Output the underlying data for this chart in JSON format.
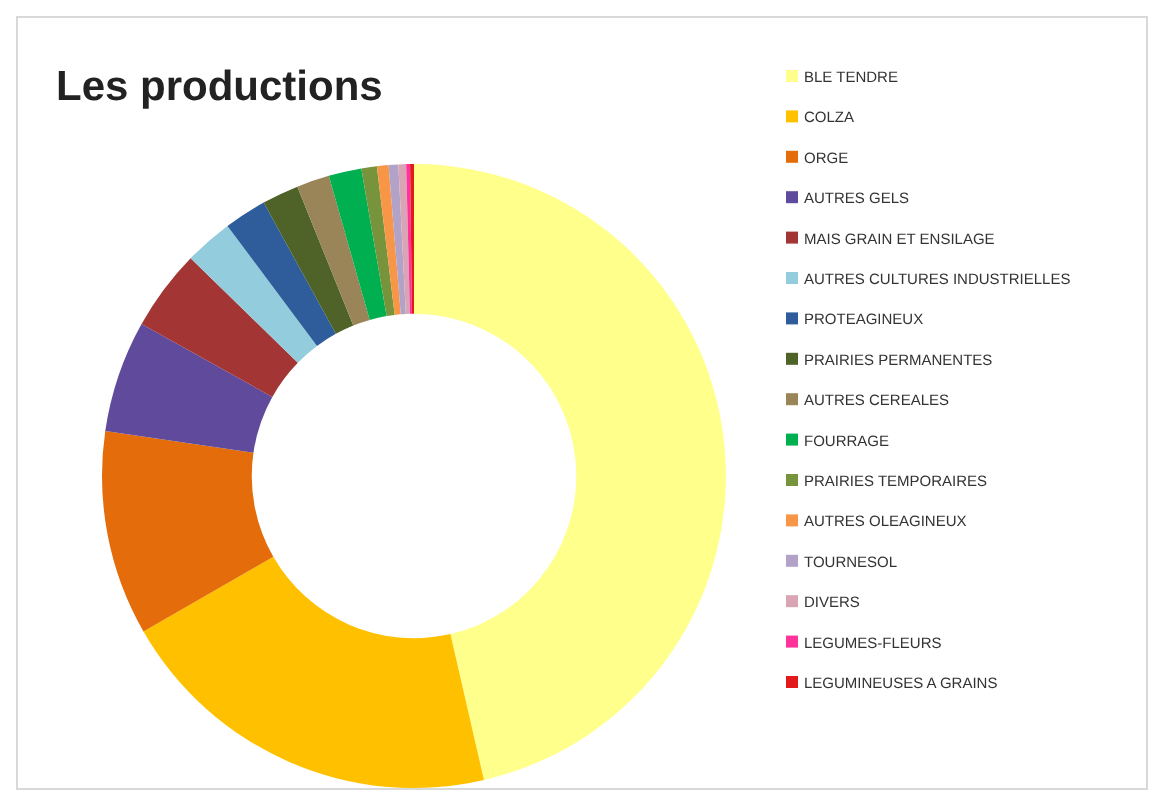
{
  "chart_data": {
    "type": "donut",
    "title": "Les productions",
    "categories": [
      "BLE TENDRE",
      "COLZA",
      "ORGE",
      "AUTRES GELS",
      "MAIS GRAIN ET ENSILAGE",
      "AUTRES CULTURES INDUSTRIELLES",
      "PROTEAGINEUX",
      "PRAIRIES PERMANENTES",
      "AUTRES CEREALES",
      "FOURRAGE",
      "PRAIRIES TEMPORAIRES",
      "AUTRES OLEAGINEUX",
      "TOURNESOL",
      "DIVERS",
      "LEGUMES-FLEURS",
      "LEGUMINEUSES A GRAINS"
    ],
    "values": [
      46.4,
      20.3,
      10.6,
      5.8,
      4.2,
      2.5,
      2.2,
      1.9,
      1.7,
      1.7,
      0.8,
      0.6,
      0.5,
      0.4,
      0.2,
      0.2
    ],
    "colors": [
      "#ffff8c",
      "#ffc000",
      "#e46c0a",
      "#604a9b",
      "#a33535",
      "#93cddd",
      "#2f5c9a",
      "#4f6228",
      "#998558",
      "#00b050",
      "#77933c",
      "#f79646",
      "#b3a2c7",
      "#d9a5b5",
      "#ff3399",
      "#e31a1c"
    ],
    "legend": "right"
  }
}
